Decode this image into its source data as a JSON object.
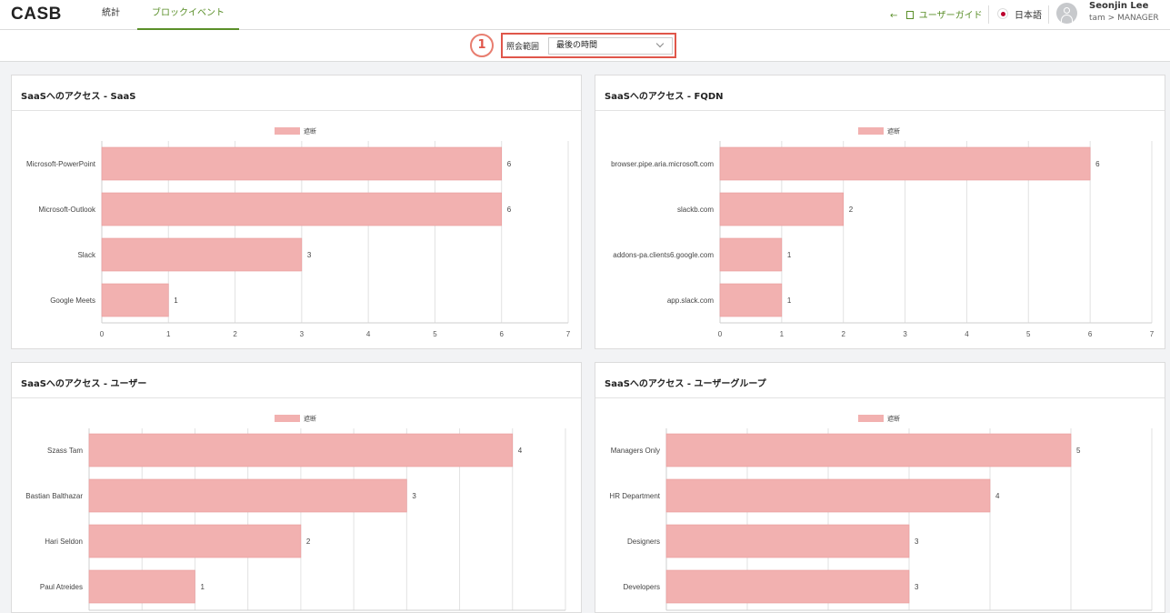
{
  "app": {
    "logo": "CASB"
  },
  "nav": {
    "tabs": [
      {
        "label": "統計",
        "active": false
      },
      {
        "label": "ブロックイベント",
        "active": true
      }
    ]
  },
  "header": {
    "guide_label": "ユーザーガイド",
    "language": "日本語",
    "user_name": "Seonjin Lee",
    "user_role": "tam > MANAGER"
  },
  "filter": {
    "step_number": "1",
    "label": "照会範囲",
    "selected_value": "最後の時間"
  },
  "colors": {
    "accent": "#5a8f29",
    "bar": "#f2b1b0",
    "highlight": "#e0564a"
  },
  "chart_data": [
    {
      "type": "bar",
      "orientation": "horizontal",
      "title": "SaaSへのアクセス - SaaS",
      "legend": "遮断",
      "categories": [
        "Microsoft-PowerPoint",
        "Microsoft-Outlook",
        "Slack",
        "Google Meets"
      ],
      "values": [
        6,
        6,
        3,
        1
      ],
      "xlim": [
        0,
        7
      ],
      "ticks": [
        0,
        1,
        2,
        3,
        4,
        5,
        6,
        7
      ]
    },
    {
      "type": "bar",
      "orientation": "horizontal",
      "title": "SaaSへのアクセス - FQDN",
      "legend": "遮断",
      "categories": [
        "browser.pipe.aria.microsoft.com",
        "slackb.com",
        "addons-pa.clients6.google.com",
        "app.slack.com"
      ],
      "values": [
        6,
        2,
        1,
        1
      ],
      "xlim": [
        0,
        7
      ],
      "ticks": [
        0,
        1,
        2,
        3,
        4,
        5,
        6,
        7
      ]
    },
    {
      "type": "bar",
      "orientation": "horizontal",
      "title": "SaaSへのアクセス - ユーザー",
      "legend": "遮断",
      "categories": [
        "Szass Tam",
        "Bastian Balthazar",
        "Hari Seldon",
        "Paul Atreides"
      ],
      "values": [
        4,
        3,
        2,
        1
      ],
      "xlim": [
        0,
        4.5
      ],
      "ticks": []
    },
    {
      "type": "bar",
      "orientation": "horizontal",
      "title": "SaaSへのアクセス - ユーザーグループ",
      "legend": "遮断",
      "categories": [
        "Managers Only",
        "HR Department",
        "Designers",
        "Developers"
      ],
      "values": [
        5,
        4,
        3,
        3
      ],
      "xlim": [
        0,
        6
      ],
      "ticks": []
    }
  ]
}
